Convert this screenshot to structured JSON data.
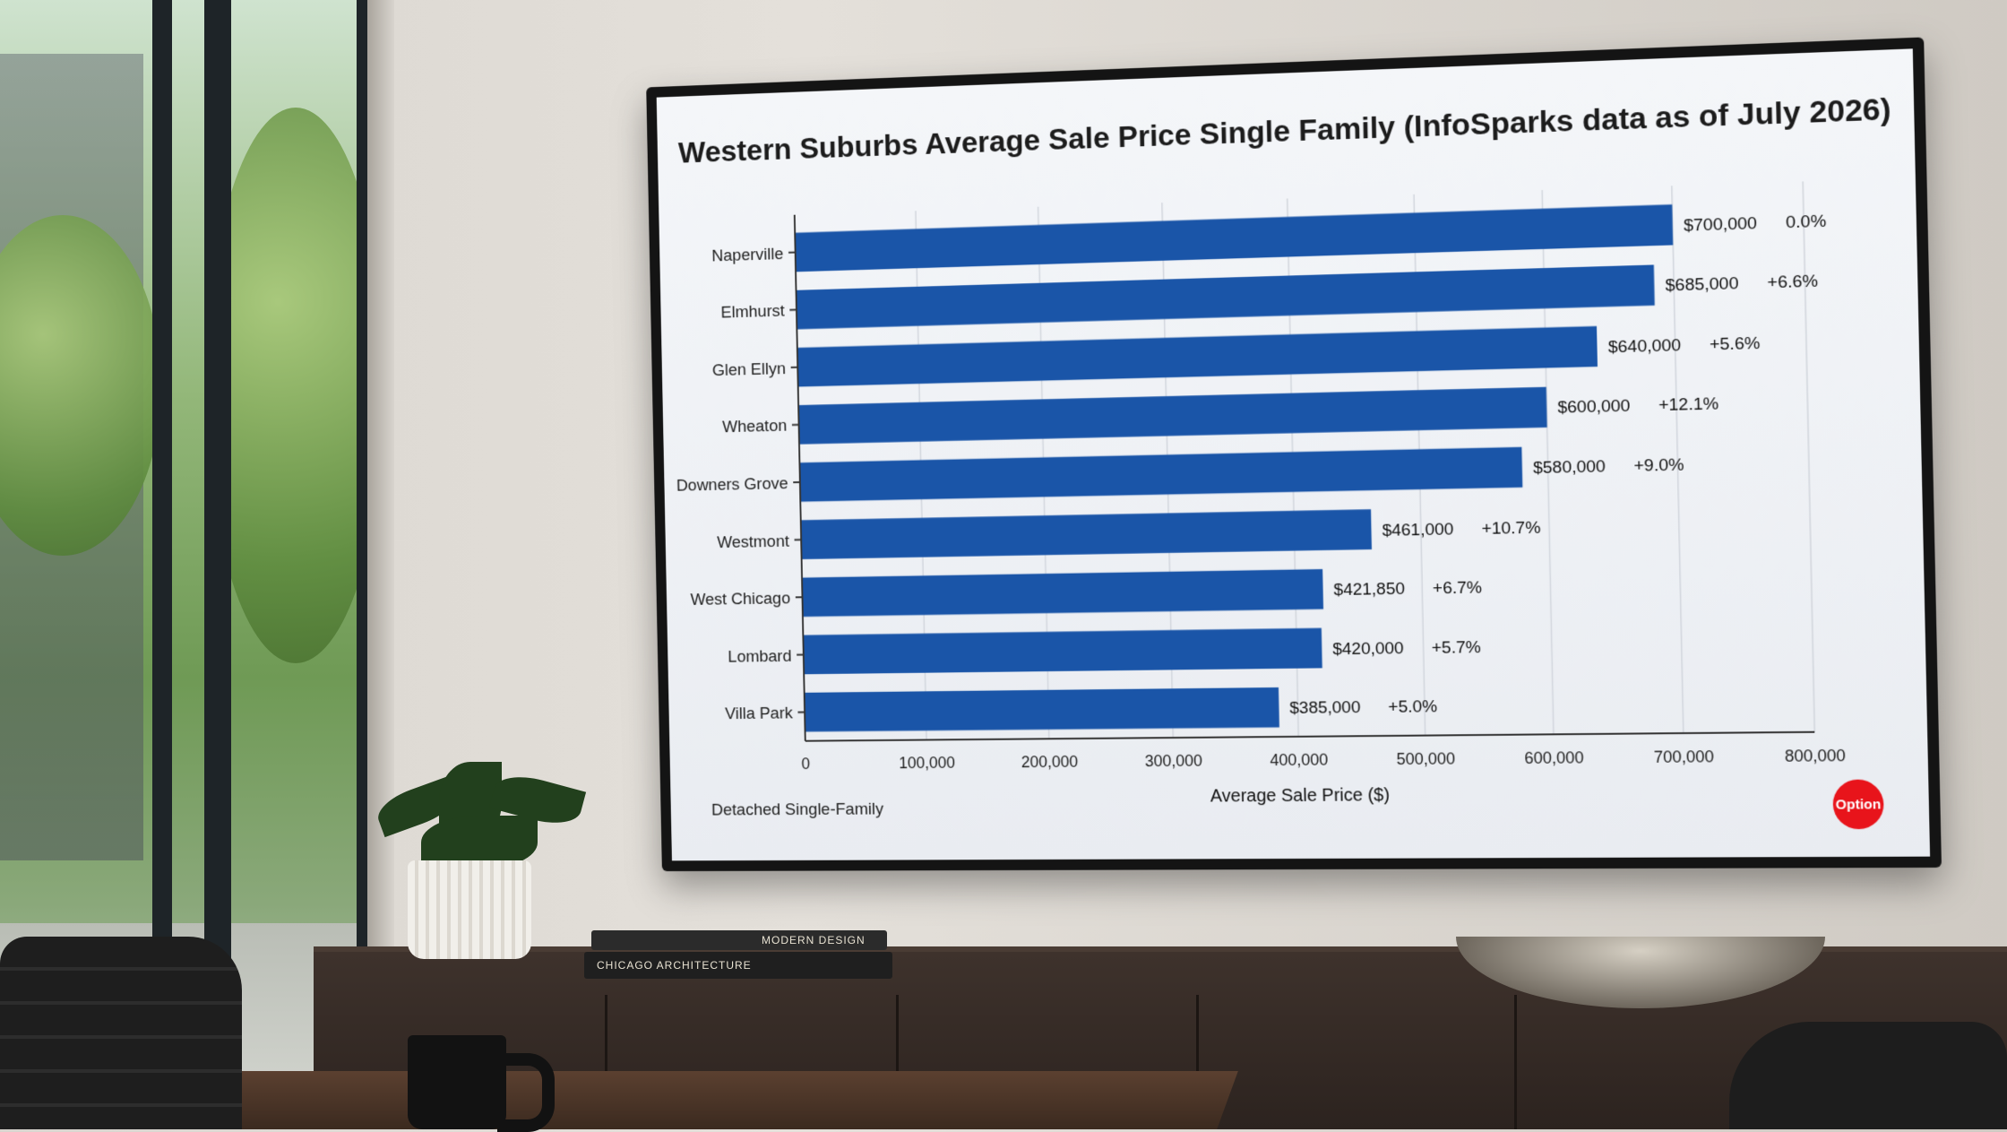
{
  "chart_data": {
    "type": "bar",
    "orientation": "horizontal",
    "title": "Western Suburbs Average Sale Price Single Family (InfoSparks data as of July 2026)",
    "xlabel": "Average Sale Price ($)",
    "ylabel": "",
    "xlim": [
      0,
      800000
    ],
    "x_ticks": [
      "0",
      "100,000",
      "200,000",
      "300,000",
      "400,000",
      "500,000",
      "600,000",
      "700,000",
      "800,000"
    ],
    "grid": "vertical",
    "bar_color": "#1a55a8",
    "categories": [
      "Naperville",
      "Elmhurst",
      "Glen Ellyn",
      "Wheaton",
      "Downers Grove",
      "Westmont",
      "West Chicago",
      "Lombard",
      "Villa Park"
    ],
    "values": [
      700000,
      685000,
      640000,
      600000,
      580000,
      461000,
      421850,
      420000,
      385000
    ],
    "value_labels": [
      "$700,000",
      "$685,000",
      "$640,000",
      "$600,000",
      "$580,000",
      "$461,000",
      "$421,850",
      "$420,000",
      "$385,000"
    ],
    "change_labels": [
      "0.0%",
      "+6.6%",
      "+5.6%",
      "+12.1%",
      "+9.0%",
      "+10.7%",
      "+6.7%",
      "+5.7%",
      "+5.0%"
    ],
    "footnote": "Detached Single-Family",
    "logo_text": "Option"
  },
  "room": {
    "book_spine_1": "CHICAGO ARCHITECTURE",
    "book_spine_2": "MODERN DESIGN"
  }
}
